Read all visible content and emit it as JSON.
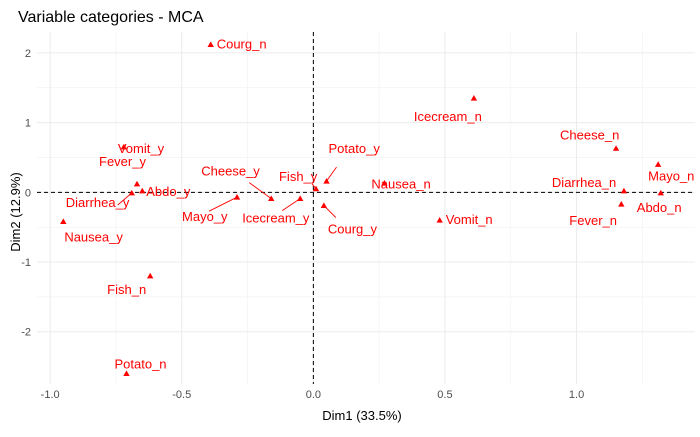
{
  "chart_data": {
    "type": "scatter",
    "title": "Variable categories - MCA",
    "xlabel": "Dim1 (33.5%)",
    "ylabel": "Dim2 (12.9%)",
    "xlim": [
      -1.05,
      1.45
    ],
    "ylim": [
      -2.75,
      2.3
    ],
    "xticks": [
      -1.0,
      -0.5,
      0.0,
      0.5,
      1.0
    ],
    "xtick_labels": [
      "-1.0",
      "-0.5",
      "0.0",
      "0.5",
      "1.0"
    ],
    "yticks": [
      -2,
      -1,
      0,
      1,
      2
    ],
    "ytick_labels": [
      "-2",
      "-1",
      "0",
      "1",
      "2"
    ],
    "grid": true,
    "reference_lines": {
      "x": 0,
      "y": 0,
      "style": "dashed"
    },
    "point_color": "#ff0000",
    "points": [
      {
        "label": "Courg_n",
        "x": -0.39,
        "y": 2.12
      },
      {
        "label": "Icecream_n",
        "x": 0.61,
        "y": 1.35
      },
      {
        "label": "Vomit_y",
        "x": -0.72,
        "y": 0.65
      },
      {
        "label": "Cheese_n",
        "x": 1.15,
        "y": 0.63
      },
      {
        "label": "Fever_y",
        "x": -0.67,
        "y": 0.12
      },
      {
        "label": "Mayo_n",
        "x": 1.31,
        "y": 0.4
      },
      {
        "label": "Potato_y",
        "x": 0.05,
        "y": 0.16
      },
      {
        "label": "Fish_y",
        "x": 0.01,
        "y": 0.05
      },
      {
        "label": "Nausea_n",
        "x": 0.27,
        "y": 0.13
      },
      {
        "label": "Cheese_y",
        "x": -0.16,
        "y": -0.09
      },
      {
        "label": "Abdo_y",
        "x": -0.65,
        "y": 0.02
      },
      {
        "label": "Diarrhea_y",
        "x": -0.69,
        "y": -0.01
      },
      {
        "label": "Mayo_y",
        "x": -0.29,
        "y": -0.07
      },
      {
        "label": "Icecream_y",
        "x": -0.05,
        "y": -0.09
      },
      {
        "label": "Courg_y",
        "x": 0.04,
        "y": -0.19
      },
      {
        "label": "Vomit_n",
        "x": 0.48,
        "y": -0.4
      },
      {
        "label": "Diarrhea_n",
        "x": 1.18,
        "y": 0.02
      },
      {
        "label": "Abdo_n",
        "x": 1.32,
        "y": -0.01
      },
      {
        "label": "Fever_n",
        "x": 1.17,
        "y": -0.17
      },
      {
        "label": "Nausea_y",
        "x": -0.95,
        "y": -0.42
      },
      {
        "label": "Fish_n",
        "x": -0.62,
        "y": -1.2
      },
      {
        "label": "Potato_n",
        "x": -0.71,
        "y": -2.6
      }
    ]
  }
}
